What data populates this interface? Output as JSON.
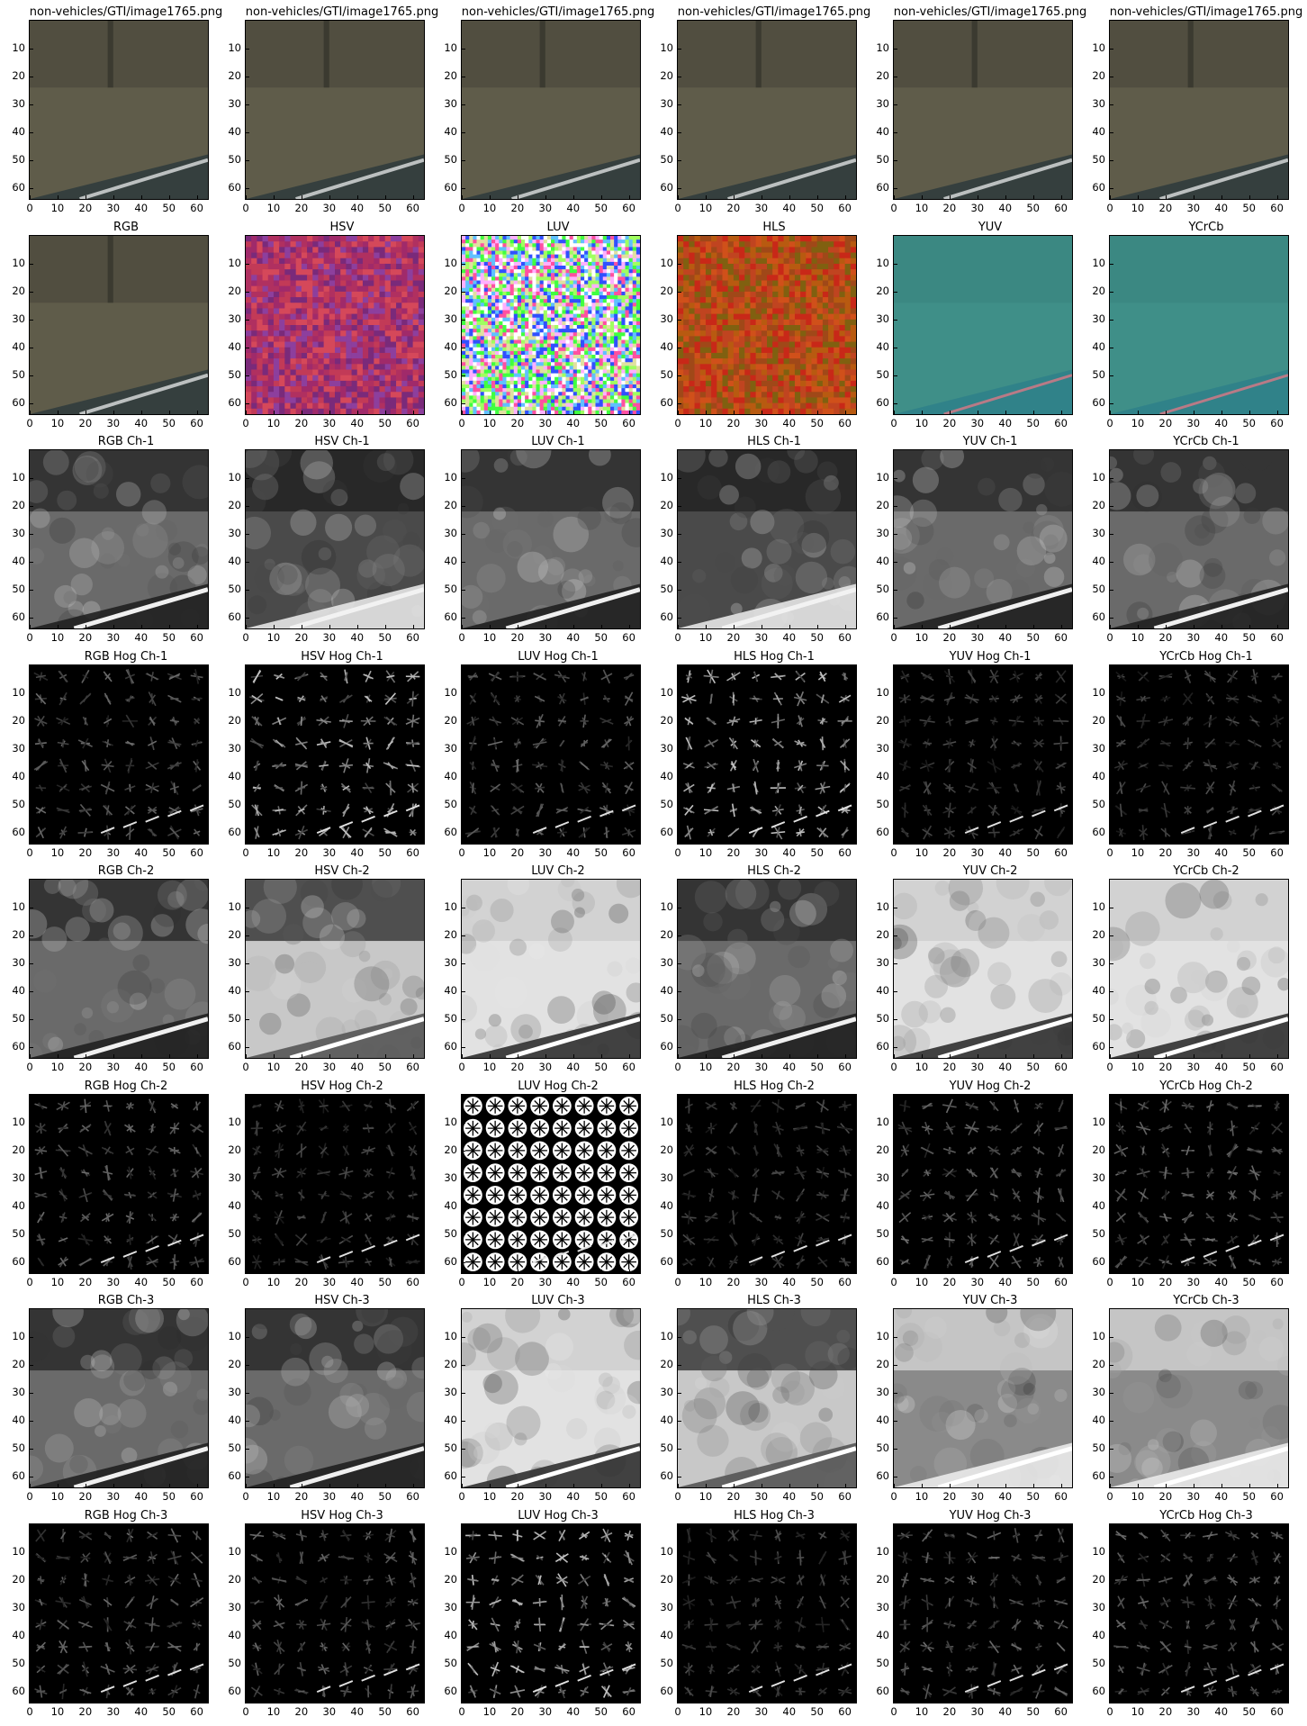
{
  "figure": {
    "rows": [
      {
        "row_label": "original",
        "titles": [
          "non-vehicles/GTI/image1765.png",
          "non-vehicles/GTI/image1765.png",
          "non-vehicles/GTI/image1765.png",
          "non-vehicles/GTI/image1765.png",
          "non-vehicles/GTI/image1765.png",
          "non-vehicles/GTI/image1765.png"
        ],
        "kind": [
          "orig",
          "orig",
          "orig",
          "orig",
          "orig",
          "orig"
        ]
      },
      {
        "row_label": "colorspace",
        "titles": [
          "RGB",
          "HSV",
          "LUV",
          "HLS",
          "YUV",
          "YCrCb"
        ],
        "kind": [
          "orig",
          "hsv",
          "luv",
          "hls",
          "yuv",
          "yuv"
        ]
      },
      {
        "row_label": "ch1",
        "titles": [
          "RGB Ch-1",
          "HSV Ch-1",
          "LUV Ch-1",
          "HLS Ch-1",
          "YUV Ch-1",
          "YCrCb Ch-1"
        ],
        "kind": [
          "gray",
          "gray-tex",
          "gray",
          "gray-tex",
          "gray",
          "gray"
        ]
      },
      {
        "row_label": "hog1",
        "titles": [
          "RGB Hog Ch-1",
          "HSV Hog Ch-1",
          "LUV Hog Ch-1",
          "HLS Hog Ch-1",
          "YUV Hog Ch-1",
          "YCrCb Hog Ch-1"
        ],
        "kind": [
          "hog",
          "hog-bright",
          "hog",
          "hog-bright",
          "hog-dim",
          "hog-dim"
        ]
      },
      {
        "row_label": "ch2",
        "titles": [
          "RGB Ch-2",
          "HSV Ch-2",
          "LUV Ch-2",
          "HLS Ch-2",
          "YUV Ch-2",
          "YCrCb Ch-2"
        ],
        "kind": [
          "gray",
          "gray-light",
          "gray-white",
          "gray",
          "gray-white",
          "gray-white"
        ]
      },
      {
        "row_label": "hog2",
        "titles": [
          "RGB Hog Ch-2",
          "HSV Hog Ch-2",
          "LUV Hog Ch-2",
          "HLS Hog Ch-2",
          "YUV Hog Ch-2",
          "YCrCb Hog Ch-2"
        ],
        "kind": [
          "hog",
          "hog-dim",
          "hog-stars",
          "hog-dim",
          "hog",
          "hog"
        ]
      },
      {
        "row_label": "ch3",
        "titles": [
          "RGB Ch-3",
          "HSV Ch-3",
          "LUV Ch-3",
          "HLS Ch-3",
          "YUV Ch-3",
          "YCrCb Ch-3"
        ],
        "kind": [
          "gray",
          "gray",
          "gray-white",
          "gray-light",
          "gray-dark-tex",
          "gray-dark-tex"
        ]
      },
      {
        "row_label": "hog3",
        "titles": [
          "RGB Hog Ch-3",
          "HSV Hog Ch-3",
          "LUV Hog Ch-3",
          "HLS Hog Ch-3",
          "YUV Hog Ch-3",
          "YCrCb Hog Ch-3"
        ],
        "kind": [
          "hog",
          "hog",
          "hog-bright",
          "hog-dim",
          "hog",
          "hog"
        ]
      }
    ],
    "xticks": [
      "0",
      "10",
      "20",
      "30",
      "40",
      "50",
      "60"
    ],
    "yticks": [
      "10",
      "20",
      "30",
      "40",
      "50",
      "60"
    ],
    "axis_range": [
      0,
      64
    ],
    "colors": {
      "orig_fill": "#5f5c4a",
      "hsv_fill": "#c23a57",
      "hls_fill": "#c04420",
      "yuv_fill": "#3f8f88",
      "hog_bg": "#000000"
    }
  }
}
